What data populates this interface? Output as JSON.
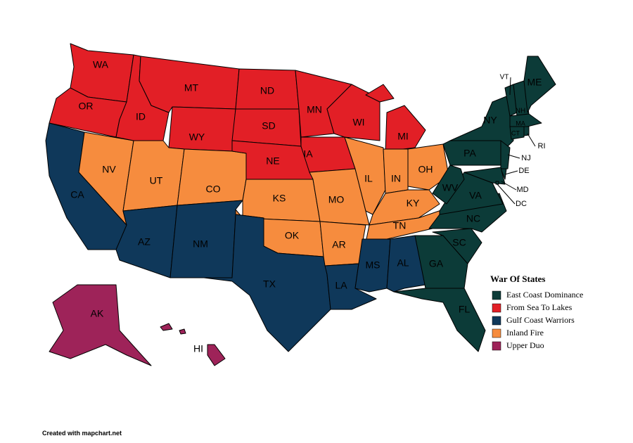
{
  "title": "War Of States",
  "legend": [
    {
      "label": "East Coast Dominance",
      "color": "#0c3b38"
    },
    {
      "label": "From Sea To Lakes",
      "color": "#e21f26"
    },
    {
      "label": "Gulf Coast Warriors",
      "color": "#0f385a"
    },
    {
      "label": "Inland Fire",
      "color": "#f68c3e"
    },
    {
      "label": "Upper Duo",
      "color": "#9e2359"
    }
  ],
  "states": [
    {
      "label": "WA",
      "group": 1
    },
    {
      "label": "OR",
      "group": 1
    },
    {
      "label": "CA",
      "group": 2
    },
    {
      "label": "NV",
      "group": 3
    },
    {
      "label": "ID",
      "group": 1
    },
    {
      "label": "MT",
      "group": 1
    },
    {
      "label": "WY",
      "group": 1
    },
    {
      "label": "UT",
      "group": 3
    },
    {
      "label": "CO",
      "group": 3
    },
    {
      "label": "AZ",
      "group": 2
    },
    {
      "label": "NM",
      "group": 2
    },
    {
      "label": "ND",
      "group": 1
    },
    {
      "label": "SD",
      "group": 1
    },
    {
      "label": "NE",
      "group": 1
    },
    {
      "label": "KS",
      "group": 3
    },
    {
      "label": "OK",
      "group": 3
    },
    {
      "label": "TX",
      "group": 2
    },
    {
      "label": "MN",
      "group": 1
    },
    {
      "label": "IA",
      "group": 1
    },
    {
      "label": "MO",
      "group": 3
    },
    {
      "label": "AR",
      "group": 3
    },
    {
      "label": "LA",
      "group": 2
    },
    {
      "label": "WI",
      "group": 1
    },
    {
      "label": "MI",
      "group": 1
    },
    {
      "label": "IL",
      "group": 3
    },
    {
      "label": "IN",
      "group": 3
    },
    {
      "label": "OH",
      "group": 3
    },
    {
      "label": "KY",
      "group": 3
    },
    {
      "label": "TN",
      "group": 3
    },
    {
      "label": "MS",
      "group": 2
    },
    {
      "label": "AL",
      "group": 2
    },
    {
      "label": "GA",
      "group": 0
    },
    {
      "label": "FL",
      "group": 0
    },
    {
      "label": "SC",
      "group": 0
    },
    {
      "label": "NC",
      "group": 0
    },
    {
      "label": "VA",
      "group": 0
    },
    {
      "label": "WV",
      "group": 0
    },
    {
      "label": "PA",
      "group": 0
    },
    {
      "label": "NY",
      "group": 0
    },
    {
      "label": "NJ",
      "group": 0
    },
    {
      "label": "DE",
      "group": 0
    },
    {
      "label": "MD",
      "group": 0
    },
    {
      "label": "DC",
      "group": 0
    },
    {
      "label": "VT",
      "group": 0
    },
    {
      "label": "NH",
      "group": 0
    },
    {
      "label": "ME",
      "group": 0
    },
    {
      "label": "MA",
      "group": 0
    },
    {
      "label": "CT",
      "group": 0
    },
    {
      "label": "RI",
      "group": 0
    },
    {
      "label": "AK",
      "group": 4
    },
    {
      "label": "HI",
      "group": 4
    }
  ],
  "footer": "Created with mapchart.net"
}
